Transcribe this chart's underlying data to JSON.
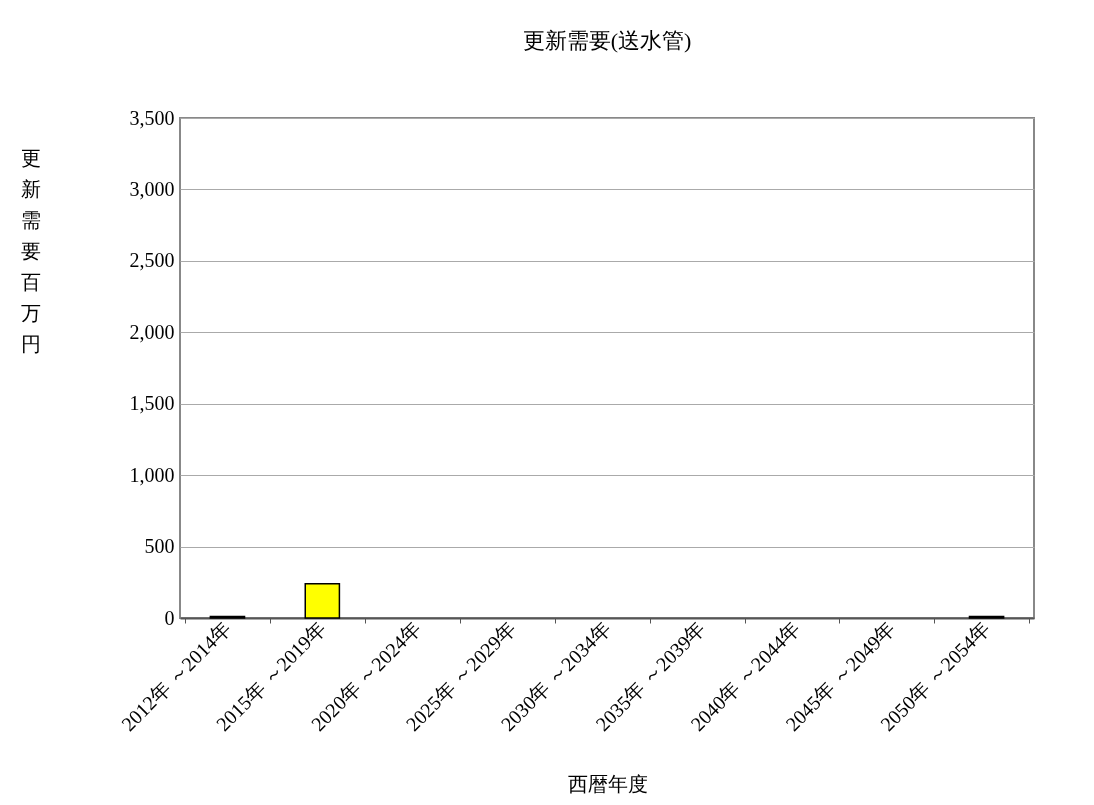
{
  "chart_data": {
    "type": "bar",
    "title": "更新需要(送水管)",
    "xlabel": "西暦年度",
    "ylabel": "更新需要百万円",
    "categories": [
      "2012年 ～2014年",
      "2015年 ～2019年",
      "2020年 ～2024年",
      "2025年 ～2029年",
      "2030年 ～2034年",
      "2035年 ～2039年",
      "2040年 ～2044年",
      "2045年 ～2049年",
      "2050年 ～2054年"
    ],
    "values": [
      10,
      240,
      0,
      0,
      0,
      0,
      0,
      0,
      10
    ],
    "colors": [
      "#ffff00",
      "#ffff00",
      "#ffff00",
      "#ffff00",
      "#ffff00",
      "#ffff00",
      "#ffff00",
      "#ffff00",
      "#ffff00"
    ],
    "ylim": [
      0,
      3500
    ],
    "yticks": [
      {
        "value": 0,
        "label": "0"
      },
      {
        "value": 500,
        "label": "500"
      },
      {
        "value": 1000,
        "label": "1,000"
      },
      {
        "value": 1500,
        "label": "1,500"
      },
      {
        "value": 2000,
        "label": "2,000"
      },
      {
        "value": 2500,
        "label": "2,500"
      },
      {
        "value": 3000,
        "label": "3,000"
      },
      {
        "value": 3500,
        "label": "3,500"
      }
    ],
    "grid": "y"
  }
}
